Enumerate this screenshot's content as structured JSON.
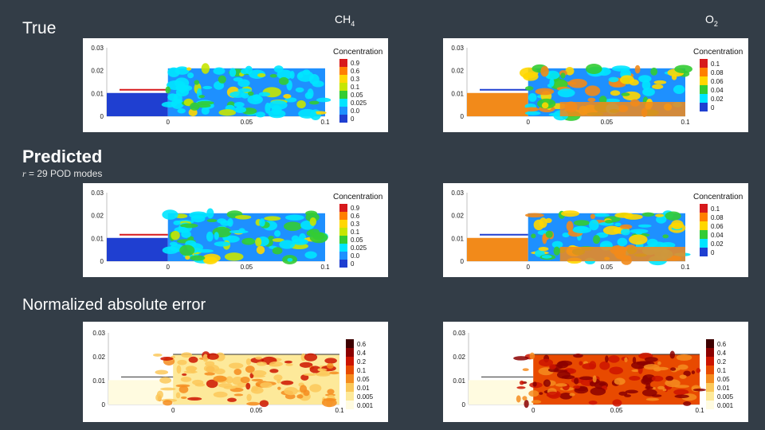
{
  "labels": {
    "row_true": "True",
    "col_ch4": "CH",
    "col_ch4_sub": "4",
    "col_o2": "O",
    "col_o2_sub": "2",
    "row_predicted": "Predicted",
    "row_predicted_sub_var": "r",
    "row_predicted_sub_rest": " = 29 POD modes",
    "row_error": "Normalized absolute error"
  },
  "axes": {
    "y_ticks": [
      "0.03",
      "0.02",
      "0.01",
      "0"
    ],
    "x_ticks": [
      "0",
      "0.05",
      "0.1"
    ]
  },
  "colorbars": {
    "ch4_title": "Concentration",
    "ch4_levels": [
      "0.9",
      "0.6",
      "0.3",
      "0.1",
      "0.05",
      "0.025",
      "0.0",
      "0"
    ],
    "o2_title": "Concentration",
    "o2_levels": [
      "0.1",
      "0.08",
      "0.06",
      "0.04",
      "0.02",
      "0"
    ],
    "error_levels": [
      "0.6",
      "0.4",
      "0.2",
      "0.1",
      "0.05",
      "0.01",
      "0.005",
      "0.001"
    ]
  },
  "colors": {
    "background": "#333d47",
    "concentration_scale": [
      "#d7191c",
      "#ff7f00",
      "#ffd700",
      "#c6e600",
      "#33cc33",
      "#00e5ff",
      "#1e90ff",
      "#1f3fd1"
    ],
    "error_scale": [
      "#3d0000",
      "#8b0000",
      "#cc1400",
      "#e84a00",
      "#f58c1e",
      "#fbc85a",
      "#fde99a",
      "#fffbe0"
    ],
    "o2_base": "#f28a1a"
  }
}
